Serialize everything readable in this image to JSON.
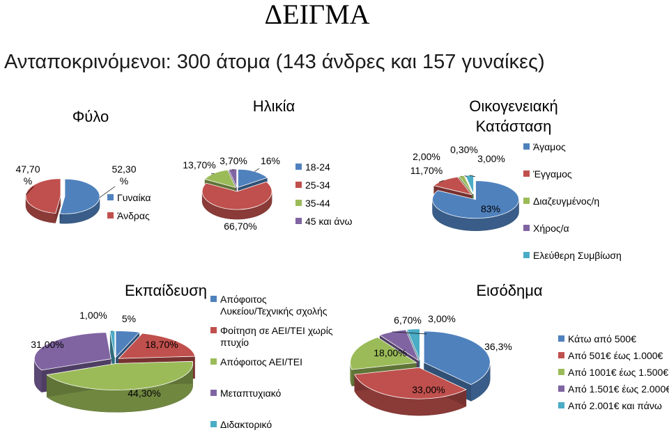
{
  "header": {
    "title": "ΔΕΙΓΜΑ",
    "subtitle": "Ανταποκρινόμενοι: 300 άτομα (143 άνδρες και 157 γυναίκες)"
  },
  "colors": {
    "blue": "#4F81BD",
    "red": "#C0504D",
    "green": "#9BBB59",
    "purple": "#8064A2",
    "cyan": "#4BACC6"
  },
  "chart_data": [
    {
      "type": "pie",
      "title": "Φύλο",
      "categories": [
        "Γυναίκα",
        "Άνδρας"
      ],
      "values": [
        52.3,
        47.7
      ],
      "data_labels": [
        "52,30 %",
        "47,70 %"
      ],
      "legend": "right"
    },
    {
      "type": "pie",
      "title": "Ηλικία",
      "categories": [
        "18-24",
        "25-34",
        "35-44",
        "45 και άνω"
      ],
      "values": [
        16,
        66.7,
        13.7,
        3.7
      ],
      "data_labels": [
        "16%",
        "66,70%",
        "13,70%",
        "3,70%"
      ],
      "legend": "right"
    },
    {
      "type": "pie",
      "title": "Οικογενειακή Κατάσταση",
      "categories": [
        "Άγαμος",
        "Έγγαμος",
        "Διαζευγμένος/η",
        "Χήρος/α",
        "Ελεύθερη Συμβίωση"
      ],
      "values": [
        83,
        11.7,
        2,
        0.3,
        3
      ],
      "data_labels": [
        "83%",
        "11,70%",
        "2,00%",
        "0,30%",
        "3,00%"
      ],
      "legend": "right"
    },
    {
      "type": "pie",
      "title": "Εκπαίδευση",
      "categories": [
        "Απόφοιτος Λυκείου/Τεχνικής σχολής",
        "Φοίτηση σε ΑΕΙ/ΤΕΙ χωρίς πτυχίο",
        "Απόφοιτος ΑΕΙ/ΤΕΙ",
        "Μεταπτυχιακό",
        "Διδακτορικό"
      ],
      "values": [
        5,
        18.7,
        44.3,
        31,
        1
      ],
      "data_labels": [
        "5%",
        "18,70%",
        "44,30%",
        "31,00%",
        "1,00%"
      ],
      "legend": "right"
    },
    {
      "type": "pie",
      "title": "Εισόδημα",
      "categories": [
        "Κάτω από 500€",
        "Από 501€ έως 1.000€",
        "Από 1001€ έως 1.500€",
        "Από 1.501€ έως 2.000€",
        "Από 2.001€ και πάνω"
      ],
      "values": [
        36.3,
        33,
        18,
        6.7,
        3
      ],
      "data_labels": [
        "36,3%",
        "33,00%",
        "18,00%",
        "6,70%",
        "3,00%"
      ],
      "legend": "right"
    }
  ]
}
